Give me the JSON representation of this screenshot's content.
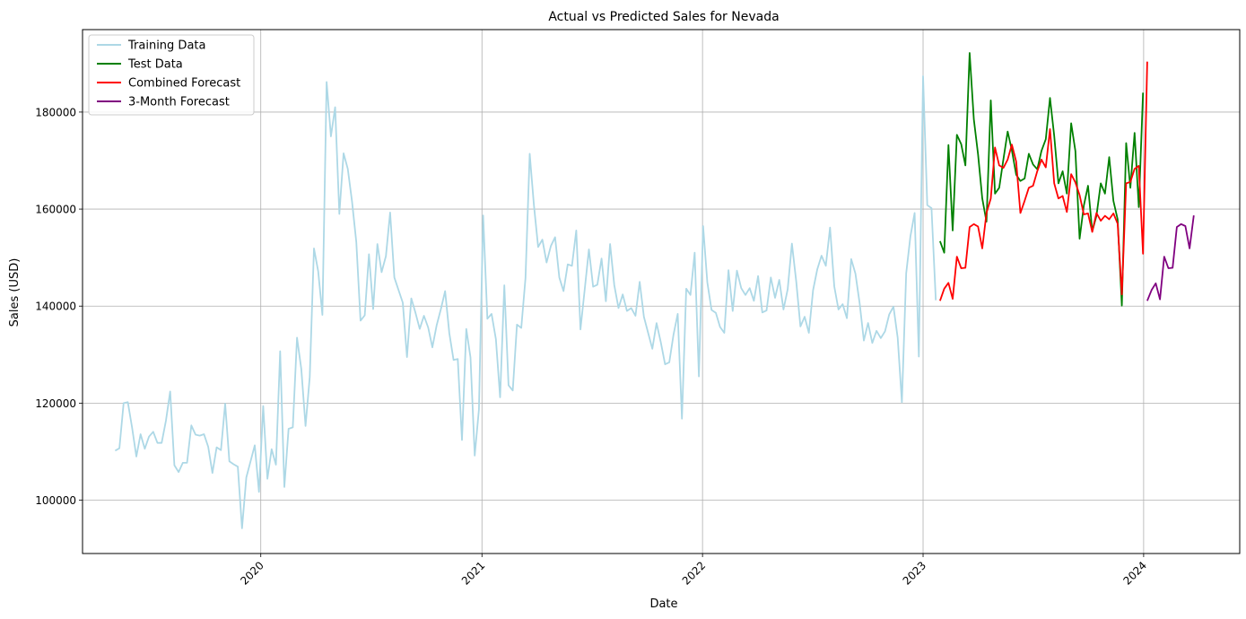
{
  "chart_data": {
    "type": "line",
    "title": "Actual vs Predicted Sales for Nevada",
    "xlabel": "Date",
    "ylabel": "Sales (USD)",
    "x_unit": "date (weekly)",
    "xlim": [
      "2019-03-12",
      "2024-06-08"
    ],
    "ylim": [
      89000,
      197000
    ],
    "x_ticks": [
      {
        "date": "2020-01-01",
        "label": "2020"
      },
      {
        "date": "2021-01-01",
        "label": "2021"
      },
      {
        "date": "2022-01-01",
        "label": "2022"
      },
      {
        "date": "2023-01-01",
        "label": "2023"
      },
      {
        "date": "2024-01-01",
        "label": "2024"
      }
    ],
    "y_ticks": [
      {
        "value": 100000,
        "label": "100000"
      },
      {
        "value": 120000,
        "label": "120000"
      },
      {
        "value": 140000,
        "label": "140000"
      },
      {
        "value": 160000,
        "label": "160000"
      },
      {
        "value": 180000,
        "label": "180000"
      }
    ],
    "grid": true,
    "legend_position": "top-left",
    "series": [
      {
        "name": "Training Data",
        "color": "#add8e6",
        "start_date": "2019-05-05",
        "interval_days": 7,
        "values": [
          110200,
          110700,
          120000,
          120200,
          115000,
          109000,
          113600,
          110600,
          113100,
          114100,
          111800,
          111800,
          116400,
          122400,
          107200,
          105800,
          107700,
          107700,
          115400,
          113500,
          113300,
          113600,
          111000,
          105600,
          110900,
          110300,
          119900,
          108000,
          107400,
          106900,
          94200,
          104700,
          108000,
          111300,
          101700,
          119400,
          104400,
          110500,
          107300,
          130700,
          102700,
          114700,
          115000,
          133500,
          127000,
          115300,
          125400,
          151900,
          147200,
          138200,
          186200,
          175000,
          181000,
          159000,
          171500,
          168300,
          161600,
          153200,
          137000,
          138100,
          150700,
          139400,
          152800,
          147000,
          150300,
          159300,
          145900,
          143300,
          140700,
          129500,
          141600,
          138600,
          135300,
          138000,
          135600,
          131500,
          136000,
          139400,
          143100,
          134400,
          128900,
          129100,
          112400,
          135300,
          129400,
          109200,
          118700,
          158700,
          137400,
          138400,
          133200,
          121200,
          144300,
          123700,
          122600,
          136200,
          135500,
          145800,
          171400,
          160800,
          152200,
          153700,
          149000,
          152400,
          154200,
          145900,
          143100,
          148600,
          148300,
          155600,
          135200,
          143400,
          151700,
          144000,
          144400,
          149800,
          141000,
          152800,
          144300,
          139600,
          142400,
          139000,
          139600,
          138000,
          145000,
          137800,
          134500,
          131200,
          136500,
          132500,
          128000,
          128400,
          134100,
          138400,
          116800,
          143600,
          142300,
          151000,
          125500,
          156500,
          144900,
          139200,
          138600,
          135700,
          134500,
          147400,
          139000,
          147300,
          143700,
          142300,
          143700,
          141100,
          146200,
          138700,
          139100,
          145900,
          141700,
          145400,
          139300,
          143500,
          152900,
          145100,
          135800,
          137800,
          134500,
          143300,
          147600,
          150400,
          148300,
          156200,
          144100,
          139300,
          140400,
          137500,
          149700,
          146700,
          140600,
          132900,
          136500,
          132400,
          134900,
          133400,
          134800,
          138300,
          139900,
          133500,
          120200,
          146800,
          154400,
          159200,
          129600,
          187400,
          160800,
          160200,
          141200
        ]
      },
      {
        "name": "Test Data",
        "color": "#008000",
        "start_date": "2023-01-29",
        "interval_days": 7,
        "values": [
          153400,
          151000,
          173200,
          155600,
          175300,
          173400,
          169000,
          192200,
          178500,
          171300,
          162200,
          157400,
          182400,
          163200,
          164400,
          170300,
          176000,
          172100,
          167100,
          165800,
          166300,
          171400,
          169200,
          168200,
          172000,
          174400,
          182900,
          175100,
          165300,
          167800,
          163200,
          177700,
          172000,
          153900,
          160700,
          164800,
          155400,
          158600,
          165300,
          163200,
          170700,
          161700,
          157900,
          140100,
          173600,
          164400,
          175700,
          160400,
          184000
        ]
      },
      {
        "name": "Combined Forecast",
        "color": "#ff0000",
        "start_date": "2023-01-29",
        "interval_days": 7,
        "values": [
          141100,
          143600,
          144800,
          141500,
          150200,
          147800,
          147900,
          156300,
          156900,
          156400,
          151900,
          159200,
          162200,
          172700,
          169000,
          168500,
          170200,
          173300,
          169800,
          159200,
          161700,
          164400,
          164800,
          167800,
          170200,
          168600,
          176500,
          165300,
          162200,
          162700,
          159400,
          167200,
          165500,
          162900,
          158900,
          159100,
          155300,
          159200,
          157600,
          158600,
          157900,
          159100,
          157000,
          142400,
          165300,
          165600,
          168300,
          168900,
          150800,
          190400
        ]
      },
      {
        "name": "3-Month Forecast",
        "color": "#800080",
        "start_date": "2024-01-07",
        "interval_days": 7,
        "values": [
          141100,
          143300,
          144700,
          141400,
          150200,
          147800,
          147900,
          156300,
          156900,
          156500,
          151900,
          158700
        ]
      }
    ]
  }
}
